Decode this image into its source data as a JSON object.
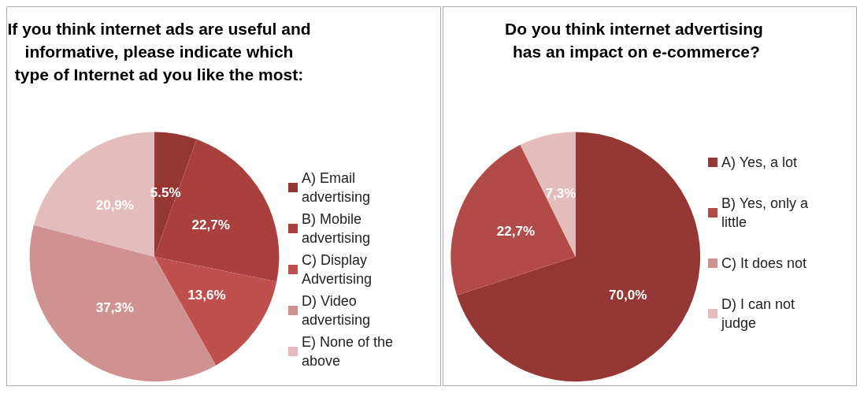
{
  "chart_data": [
    {
      "type": "pie",
      "title": "If you think internet ads are useful and informative, please indicate which type of Internet ad you like the most:",
      "categories": [
        "A) Email advertising",
        "B) Mobile advertising",
        "C) Display Advertising",
        "D) Video advertising",
        "E) None of the above"
      ],
      "values": [
        5.5,
        22.7,
        13.6,
        37.3,
        20.9
      ],
      "colors": [
        "#953735",
        "#a9403d",
        "#c0504d",
        "#d09290",
        "#e3bcbb"
      ],
      "value_labels": [
        "5.5%",
        "22,7%",
        "13,6%",
        "37,3%",
        "20,9%"
      ],
      "legend": "right"
    },
    {
      "type": "pie",
      "title": "Do you think internet advertising has an impact on e-commerce?",
      "categories": [
        "A) Yes, a lot",
        "B) Yes, only a little",
        "C) It does not",
        "D) I can not judge"
      ],
      "values": [
        70.0,
        22.7,
        0,
        7.3
      ],
      "colors": [
        "#953735",
        "#b24a47",
        "#d09290",
        "#e3bcbb"
      ],
      "value_labels": [
        "70,0%",
        "22,7%",
        null,
        "7,3%"
      ],
      "legend": "right"
    }
  ]
}
